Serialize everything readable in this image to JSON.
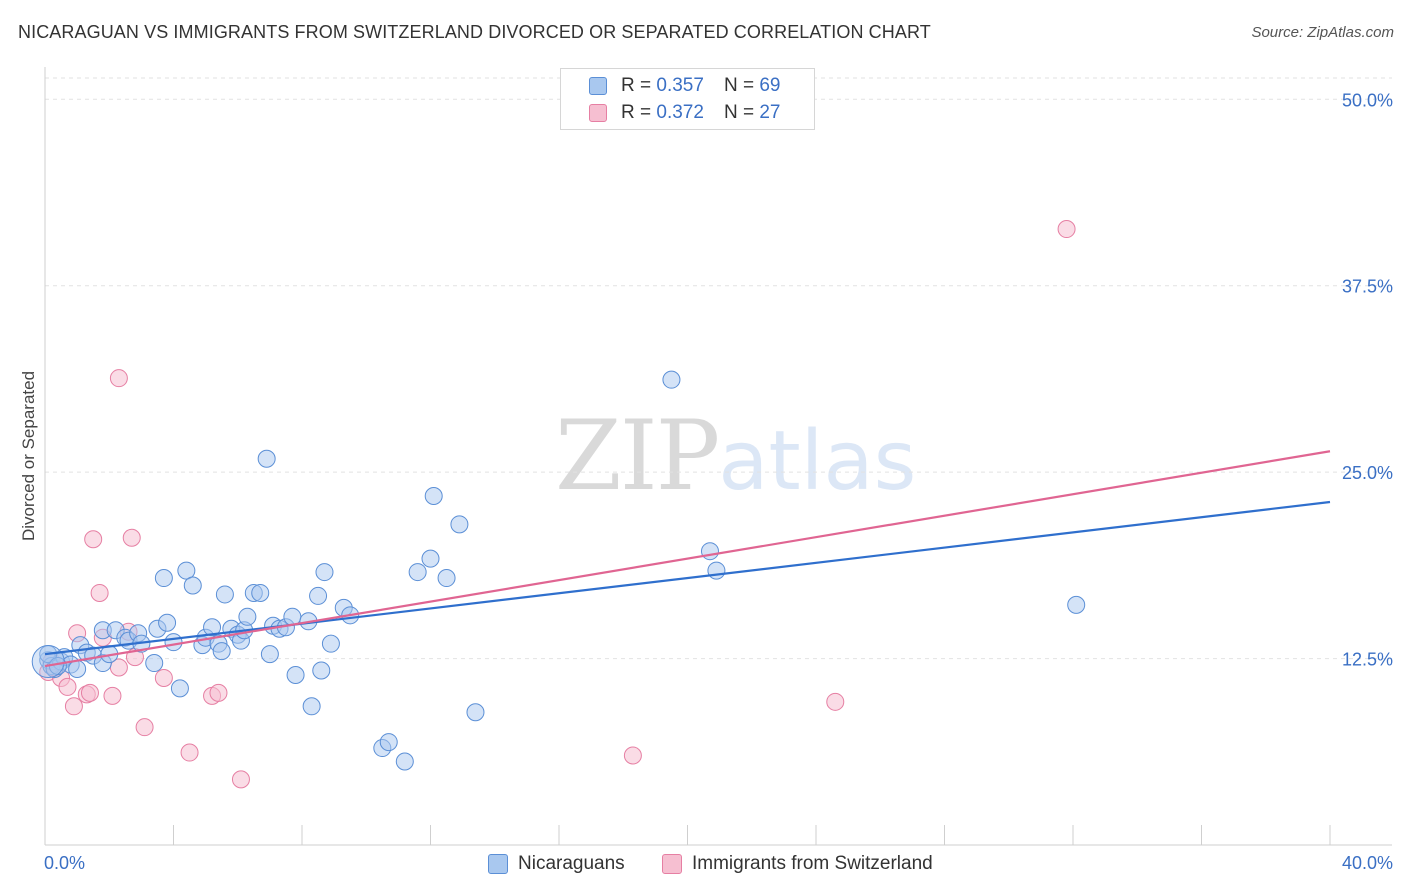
{
  "header": {
    "title": "NICARAGUAN VS IMMIGRANTS FROM SWITZERLAND DIVORCED OR SEPARATED CORRELATION CHART",
    "source": "Source: ZipAtlas.com"
  },
  "watermark": {
    "zip": "ZIP",
    "atlas": "atlas"
  },
  "legend": {
    "rows": [
      {
        "r_label": "R = ",
        "r_value": "0.357",
        "n_label": "N = ",
        "n_value": "69"
      },
      {
        "r_label": "R = ",
        "r_value": "0.372",
        "n_label": "N = ",
        "n_value": "27"
      }
    ]
  },
  "colors": {
    "series1_fill": "#a9c8ef",
    "series1_stroke": "#5b8fd6",
    "series1_line": "#2f6fcd",
    "series2_fill": "#f6bfd1",
    "series2_stroke": "#e67fa3",
    "series2_line": "#e06592",
    "tick_label": "#3a6fc4",
    "grid": "#e2e2e2",
    "axis": "#cfcfcf"
  },
  "chart_data": {
    "type": "scatter",
    "title": "NICARAGUAN VS IMMIGRANTS FROM SWITZERLAND DIVORCED OR SEPARATED CORRELATION CHART",
    "xlabel": "",
    "ylabel": "Divorced or Separated",
    "xlim": [
      0,
      40
    ],
    "ylim": [
      0,
      52.5
    ],
    "x_tick_labels": [
      "0.0%",
      "40.0%"
    ],
    "y_ticks": [
      12.5,
      25.0,
      37.5,
      50.0
    ],
    "y_tick_labels": [
      "12.5%",
      "25.0%",
      "37.5%",
      "50.0%"
    ],
    "grid": "horizontal dashed",
    "legend_placement": "top-center",
    "series": [
      {
        "name": "Nicaraguans",
        "r": 0.357,
        "n": 69,
        "trend": {
          "x": [
            0,
            40
          ],
          "y": [
            12.8,
            23.0
          ]
        },
        "points": [
          [
            0.1,
            12.4
          ],
          [
            0.2,
            12.0
          ],
          [
            0.3,
            11.8
          ],
          [
            0.5,
            12.3
          ],
          [
            0.6,
            12.6
          ],
          [
            0.8,
            12.1
          ],
          [
            1.0,
            11.8
          ],
          [
            1.1,
            13.4
          ],
          [
            1.3,
            12.9
          ],
          [
            1.5,
            12.7
          ],
          [
            1.8,
            12.2
          ],
          [
            1.8,
            14.4
          ],
          [
            2.0,
            12.8
          ],
          [
            2.2,
            14.4
          ],
          [
            2.5,
            13.9
          ],
          [
            2.6,
            13.7
          ],
          [
            2.9,
            14.2
          ],
          [
            3.0,
            13.5
          ],
          [
            3.4,
            12.2
          ],
          [
            3.5,
            14.5
          ],
          [
            3.7,
            17.9
          ],
          [
            3.8,
            14.9
          ],
          [
            4.0,
            13.6
          ],
          [
            4.2,
            10.5
          ],
          [
            4.4,
            18.4
          ],
          [
            4.6,
            17.4
          ],
          [
            4.9,
            13.4
          ],
          [
            5.0,
            13.9
          ],
          [
            5.2,
            14.6
          ],
          [
            5.4,
            13.5
          ],
          [
            5.5,
            13.0
          ],
          [
            5.6,
            16.8
          ],
          [
            5.8,
            14.5
          ],
          [
            6.0,
            14.1
          ],
          [
            6.1,
            13.7
          ],
          [
            6.2,
            14.4
          ],
          [
            6.3,
            15.3
          ],
          [
            6.5,
            16.9
          ],
          [
            6.7,
            16.9
          ],
          [
            6.9,
            25.9
          ],
          [
            7.0,
            12.8
          ],
          [
            7.1,
            14.7
          ],
          [
            7.3,
            14.5
          ],
          [
            7.5,
            14.6
          ],
          [
            7.7,
            15.3
          ],
          [
            7.8,
            11.4
          ],
          [
            8.2,
            15.0
          ],
          [
            8.3,
            9.3
          ],
          [
            8.5,
            16.7
          ],
          [
            8.6,
            11.7
          ],
          [
            8.7,
            18.3
          ],
          [
            8.9,
            13.5
          ],
          [
            9.3,
            15.9
          ],
          [
            9.5,
            15.4
          ],
          [
            10.5,
            6.5
          ],
          [
            10.7,
            6.9
          ],
          [
            11.2,
            5.6
          ],
          [
            11.6,
            18.3
          ],
          [
            12.0,
            19.2
          ],
          [
            12.1,
            23.4
          ],
          [
            12.5,
            17.9
          ],
          [
            12.9,
            21.5
          ],
          [
            13.4,
            8.9
          ],
          [
            19.5,
            31.2
          ],
          [
            20.7,
            19.7
          ],
          [
            20.9,
            18.4
          ],
          [
            32.1,
            16.1
          ],
          [
            0.1,
            12.8
          ],
          [
            0.4,
            12.0
          ]
        ]
      },
      {
        "name": "Immigrants from Switzerland",
        "r": 0.372,
        "n": 27,
        "trend": {
          "x": [
            0,
            40
          ],
          "y": [
            12.0,
            26.4
          ]
        },
        "points": [
          [
            0.1,
            11.6
          ],
          [
            0.3,
            11.9
          ],
          [
            0.5,
            11.2
          ],
          [
            0.7,
            10.6
          ],
          [
            0.9,
            9.3
          ],
          [
            1.0,
            14.2
          ],
          [
            1.3,
            10.1
          ],
          [
            1.4,
            10.2
          ],
          [
            1.5,
            20.5
          ],
          [
            1.7,
            16.9
          ],
          [
            1.8,
            13.9
          ],
          [
            2.1,
            10.0
          ],
          [
            2.3,
            11.9
          ],
          [
            2.3,
            31.3
          ],
          [
            2.6,
            14.3
          ],
          [
            2.7,
            20.6
          ],
          [
            2.8,
            12.6
          ],
          [
            3.1,
            7.9
          ],
          [
            3.7,
            11.2
          ],
          [
            4.5,
            6.2
          ],
          [
            5.2,
            10.0
          ],
          [
            5.4,
            10.2
          ],
          [
            6.1,
            4.4
          ],
          [
            18.3,
            6.0
          ],
          [
            24.6,
            9.6
          ],
          [
            31.8,
            41.3
          ],
          [
            0.2,
            12.3
          ]
        ]
      }
    ]
  },
  "bottom_legend": {
    "items": [
      {
        "label": "Nicaraguans"
      },
      {
        "label": "Immigrants from Switzerland"
      }
    ]
  }
}
